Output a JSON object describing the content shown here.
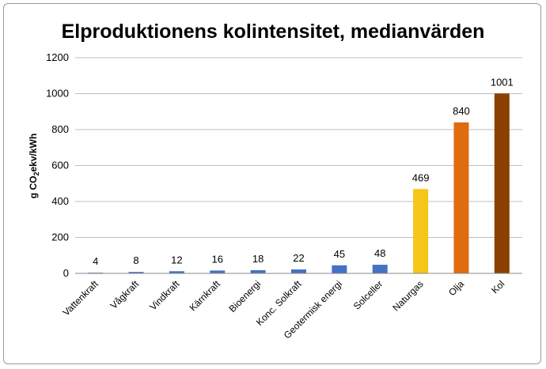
{
  "chart_data": {
    "type": "bar",
    "title": "Elproduktionens kolintensitet, medianvärden",
    "ylabel": "g CO2ekv/kWh",
    "ylabel_parts": {
      "pre": "g CO",
      "sub": "2",
      "post": "ekv/kWh"
    },
    "xlabel": "",
    "ylim": [
      0,
      1200
    ],
    "yticks": [
      0,
      200,
      400,
      600,
      800,
      1000,
      1200
    ],
    "grid": true,
    "categories": [
      "Vattenkraft",
      "Vågkraft",
      "Vindkraft",
      "Kärnkraft",
      "Bioenergi",
      "Konc. Solkraft",
      "Geotermisk energi",
      "Solceller",
      "Naturgas",
      "Olja",
      "Kol"
    ],
    "values": [
      4,
      8,
      12,
      16,
      18,
      22,
      45,
      48,
      469,
      840,
      1001
    ],
    "data_labels": [
      "4",
      "8",
      "12",
      "16",
      "18",
      "22",
      "45",
      "48",
      "469",
      "840",
      "1001"
    ],
    "colors": [
      "#4472c4",
      "#4472c4",
      "#4472c4",
      "#4472c4",
      "#4472c4",
      "#4472c4",
      "#4472c4",
      "#4472c4",
      "#f5c518",
      "#e06c10",
      "#8b4000"
    ]
  }
}
